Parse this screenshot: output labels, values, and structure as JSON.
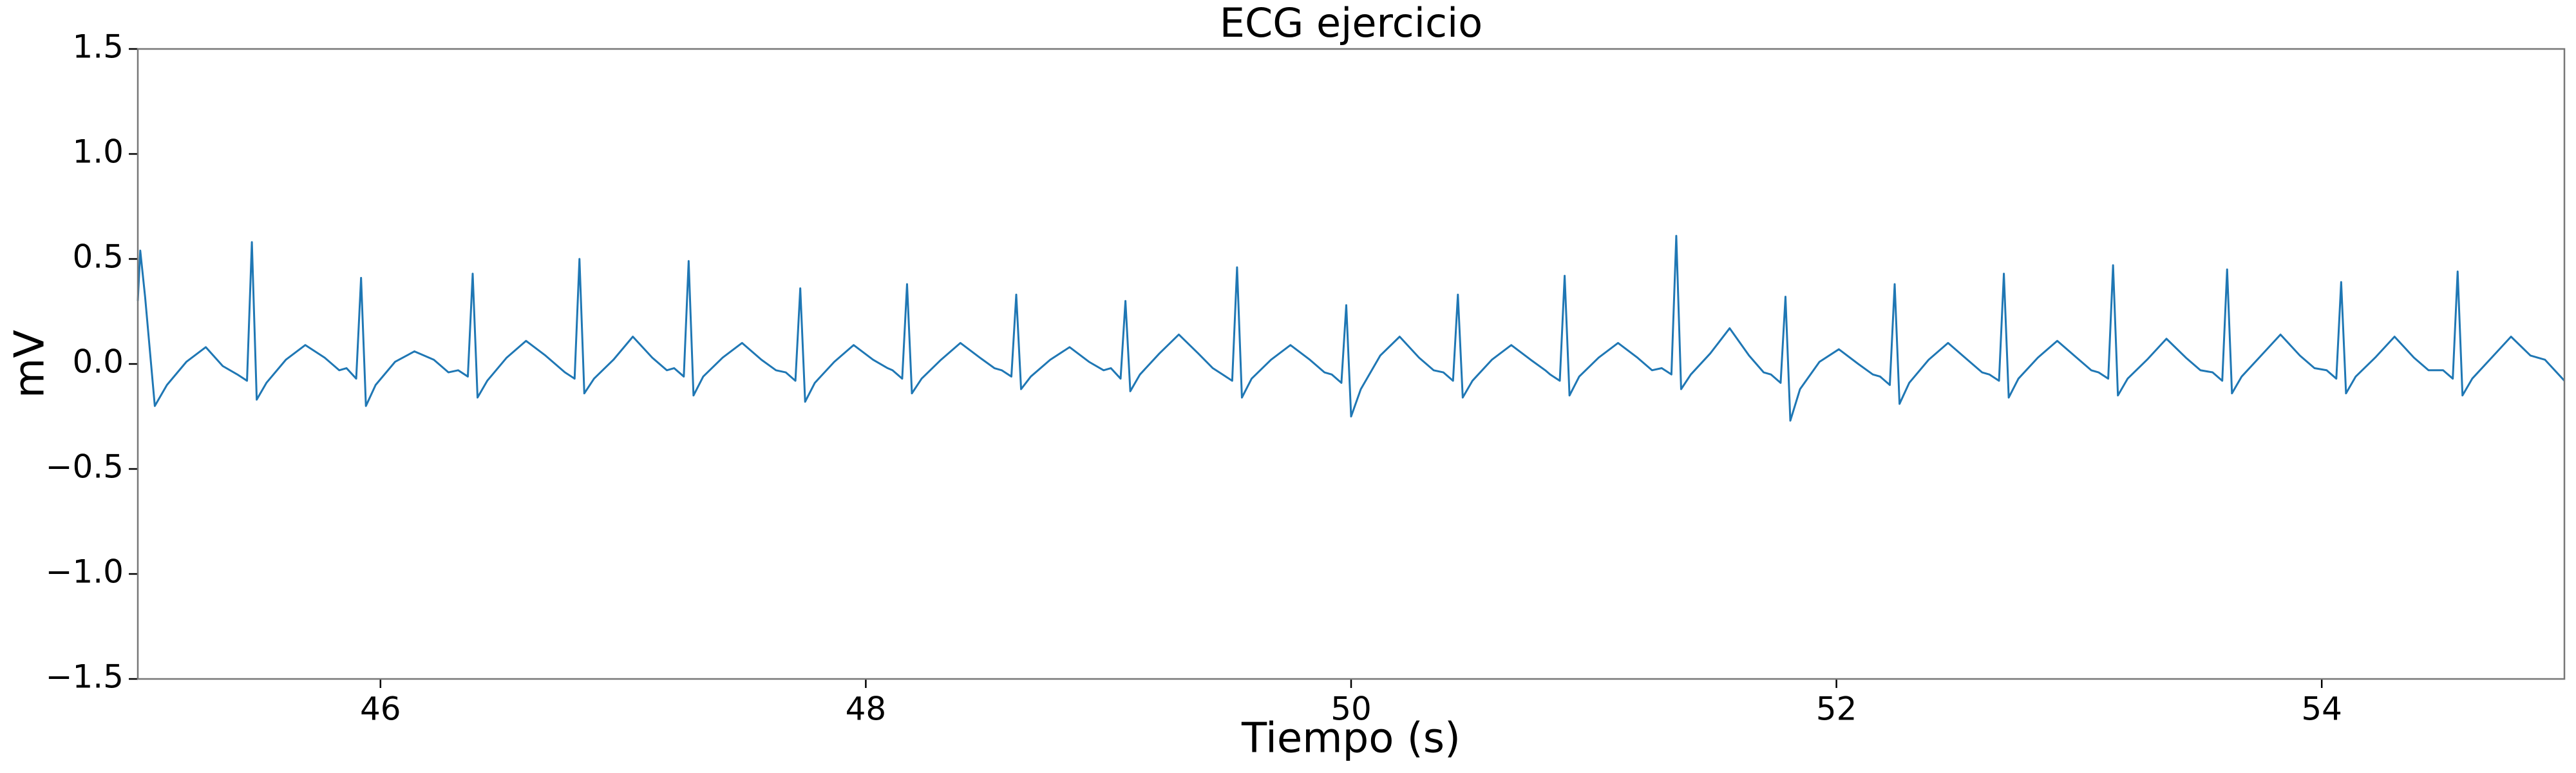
{
  "chart_data": {
    "type": "line",
    "title": "ECG ejercicio",
    "x_label": "Tiempo (s)",
    "y_label": "mV",
    "xlim": [
      45,
      55
    ],
    "ylim": [
      -1.5,
      1.5
    ],
    "xticks": [
      46,
      48,
      50,
      52,
      54
    ],
    "yticks": [
      {
        "value": -1.5,
        "label": "−1.5"
      },
      {
        "value": -1.0,
        "label": "−1.0"
      },
      {
        "value": -0.5,
        "label": "−0.5"
      },
      {
        "value": 0,
        "label": "0.0"
      },
      0.5,
      {
        "value": 1.0,
        "label": "1.0"
      },
      1.5
    ],
    "grid": false,
    "x": [
      45.0,
      45.01,
      45.03,
      45.07,
      45.12,
      45.2,
      45.28,
      45.35,
      45.41,
      45.45,
      45.47,
      45.49,
      45.53,
      45.61,
      45.69,
      45.77,
      45.83,
      45.86,
      45.9,
      45.92,
      45.94,
      45.98,
      46.06,
      46.14,
      46.22,
      46.28,
      46.32,
      46.36,
      46.38,
      46.4,
      46.44,
      46.52,
      46.6,
      46.68,
      46.74,
      46.76,
      46.8,
      46.82,
      46.84,
      46.88,
      46.96,
      47.04,
      47.12,
      47.18,
      47.21,
      47.25,
      47.27,
      47.29,
      47.33,
      47.41,
      47.49,
      47.57,
      47.63,
      47.67,
      47.71,
      47.73,
      47.75,
      47.79,
      47.87,
      47.95,
      48.03,
      48.09,
      48.11,
      48.15,
      48.17,
      48.19,
      48.23,
      48.31,
      48.39,
      48.47,
      48.53,
      48.56,
      48.6,
      48.62,
      48.64,
      48.68,
      48.76,
      48.84,
      48.92,
      48.98,
      49.01,
      49.05,
      49.07,
      49.09,
      49.13,
      49.21,
      49.29,
      49.37,
      49.43,
      49.47,
      49.51,
      49.53,
      49.55,
      49.59,
      49.67,
      49.75,
      49.83,
      49.89,
      49.92,
      49.96,
      49.98,
      50.0,
      50.04,
      50.12,
      50.2,
      50.28,
      50.34,
      50.38,
      50.42,
      50.44,
      50.46,
      50.5,
      50.58,
      50.66,
      50.74,
      50.8,
      50.82,
      50.86,
      50.88,
      50.9,
      50.94,
      51.02,
      51.1,
      51.18,
      51.24,
      51.28,
      51.32,
      51.34,
      51.36,
      51.4,
      51.48,
      51.56,
      51.64,
      51.7,
      51.73,
      51.77,
      51.79,
      51.81,
      51.85,
      51.93,
      52.01,
      52.09,
      52.15,
      52.18,
      52.22,
      52.24,
      52.26,
      52.3,
      52.38,
      52.46,
      52.54,
      52.6,
      52.63,
      52.67,
      52.69,
      52.71,
      52.75,
      52.83,
      52.91,
      52.99,
      53.05,
      53.08,
      53.12,
      53.14,
      53.16,
      53.2,
      53.28,
      53.36,
      53.44,
      53.5,
      53.55,
      53.59,
      53.61,
      53.63,
      53.67,
      53.75,
      53.83,
      53.91,
      53.97,
      54.02,
      54.06,
      54.08,
      54.1,
      54.14,
      54.22,
      54.3,
      54.38,
      54.44,
      54.5,
      54.54,
      54.56,
      54.58,
      54.62,
      54.7,
      54.78,
      54.86,
      54.92,
      55.0
    ],
    "series": [
      {
        "color": "#1f77b4",
        "values": [
          0.3,
          0.54,
          0.32,
          -0.2,
          -0.1,
          0.01,
          0.08,
          -0.01,
          -0.05,
          -0.08,
          0.58,
          -0.17,
          -0.09,
          0.02,
          0.09,
          0.03,
          -0.03,
          -0.02,
          -0.07,
          0.41,
          -0.2,
          -0.1,
          0.01,
          0.06,
          0.02,
          -0.04,
          -0.03,
          -0.06,
          0.43,
          -0.16,
          -0.08,
          0.03,
          0.11,
          0.04,
          -0.02,
          -0.04,
          -0.07,
          0.5,
          -0.14,
          -0.07,
          0.02,
          0.13,
          0.03,
          -0.03,
          -0.02,
          -0.06,
          0.49,
          -0.15,
          -0.06,
          0.03,
          0.1,
          0.02,
          -0.03,
          -0.04,
          -0.08,
          0.36,
          -0.18,
          -0.09,
          0.01,
          0.09,
          0.02,
          -0.02,
          -0.03,
          -0.07,
          0.38,
          -0.14,
          -0.07,
          0.02,
          0.1,
          0.03,
          -0.02,
          -0.03,
          -0.06,
          0.33,
          -0.12,
          -0.06,
          0.02,
          0.08,
          0.01,
          -0.03,
          -0.02,
          -0.07,
          0.3,
          -0.13,
          -0.05,
          0.05,
          0.14,
          0.05,
          -0.02,
          -0.05,
          -0.08,
          0.46,
          -0.16,
          -0.07,
          0.02,
          0.09,
          0.02,
          -0.04,
          -0.05,
          -0.09,
          0.28,
          -0.25,
          -0.12,
          0.04,
          0.13,
          0.03,
          -0.03,
          -0.04,
          -0.08,
          0.33,
          -0.16,
          -0.08,
          0.02,
          0.09,
          0.02,
          -0.03,
          -0.05,
          -0.08,
          0.42,
          -0.15,
          -0.06,
          0.03,
          0.1,
          0.03,
          -0.03,
          -0.02,
          -0.05,
          0.61,
          -0.12,
          -0.05,
          0.05,
          0.17,
          0.04,
          -0.04,
          -0.05,
          -0.09,
          0.32,
          -0.27,
          -0.12,
          0.01,
          0.07,
          0.0,
          -0.05,
          -0.06,
          -0.1,
          0.38,
          -0.19,
          -0.09,
          0.02,
          0.1,
          0.02,
          -0.04,
          -0.05,
          -0.08,
          0.43,
          -0.16,
          -0.07,
          0.03,
          0.11,
          0.03,
          -0.03,
          -0.04,
          -0.07,
          0.47,
          -0.15,
          -0.07,
          0.02,
          0.12,
          0.03,
          -0.03,
          -0.04,
          -0.08,
          0.45,
          -0.14,
          -0.06,
          0.04,
          0.14,
          0.04,
          -0.02,
          -0.03,
          -0.07,
          0.39,
          -0.14,
          -0.06,
          0.03,
          0.13,
          0.03,
          -0.03,
          -0.03,
          -0.07,
          0.44,
          -0.15,
          -0.07,
          0.03,
          0.13,
          0.04,
          0.02,
          -0.08
        ]
      }
    ]
  }
}
